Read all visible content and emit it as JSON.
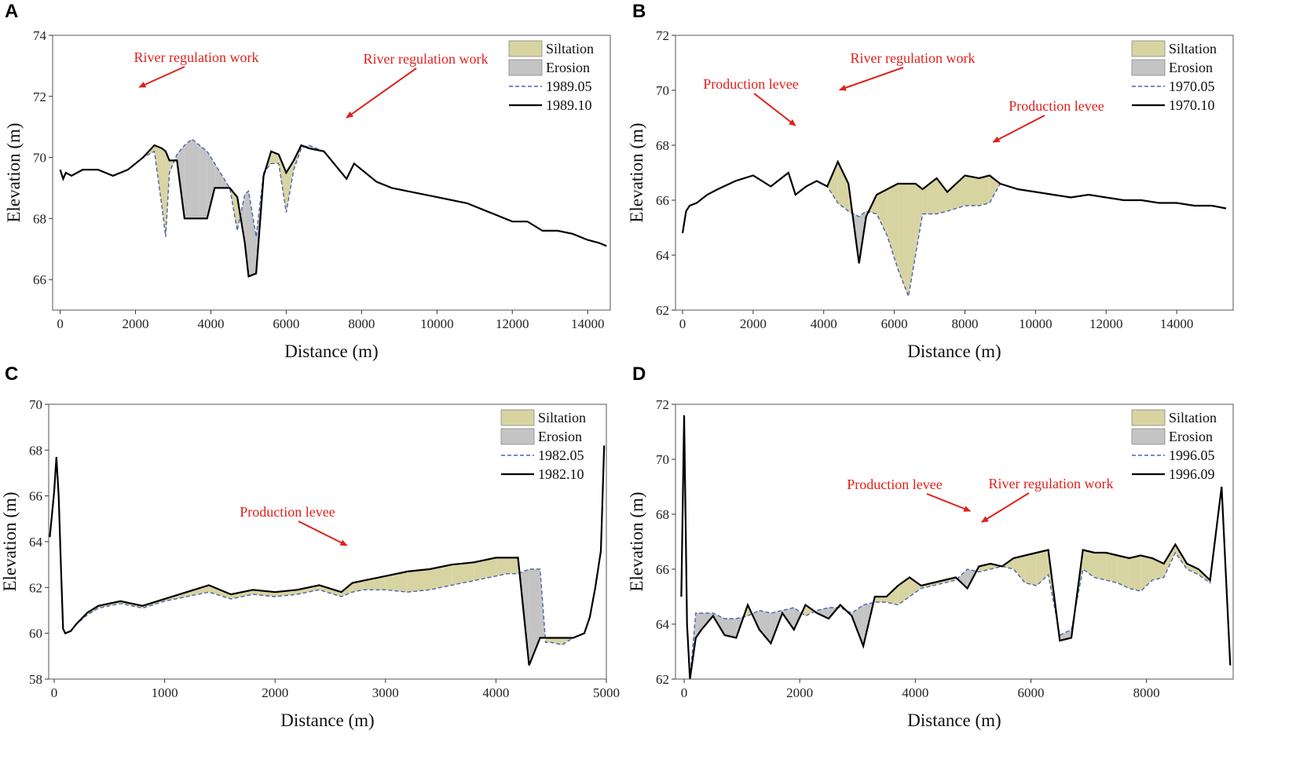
{
  "figure": {
    "panels": [
      "A",
      "B",
      "C",
      "D"
    ]
  },
  "colors": {
    "siltation": "#d8d4a2",
    "erosion": "#c4c4c4",
    "before_line": "#4a63b0",
    "after_line": "#000000",
    "annotation": "#e0201c"
  },
  "chart_data": [
    {
      "panel": "A",
      "type": "area",
      "xlabel": "Distance (m)",
      "ylabel": "Elevation (m)",
      "xlim": [
        -200,
        14600
      ],
      "ylim": [
        65,
        74
      ],
      "xticks": [
        0,
        2000,
        4000,
        6000,
        8000,
        10000,
        12000,
        14000
      ],
      "yticks": [
        66,
        68,
        70,
        72,
        74
      ],
      "legend": [
        "Siltation",
        "Erosion",
        "1989.05",
        "1989.10"
      ],
      "annotations": [
        {
          "text": "River regulation work",
          "x": 2100,
          "y": 72.2
        },
        {
          "text": "River regulation work",
          "x": 7600,
          "y": 71.2
        }
      ],
      "series": [
        {
          "name": "1989.05",
          "x": [
            0,
            80,
            150,
            300,
            600,
            1000,
            1400,
            1800,
            2000,
            2200,
            2500,
            2700,
            2800,
            2900,
            3100,
            3300,
            3500,
            3700,
            3900,
            4100,
            4300,
            4500,
            4700,
            4900,
            5000,
            5200,
            5400,
            5600,
            5800,
            6000,
            6200,
            6400,
            6600,
            7000,
            7400,
            7600,
            7800,
            8000,
            8400,
            8800,
            9200,
            9600,
            10000,
            10400,
            10800,
            11200,
            11600,
            12000,
            12400,
            12800,
            13200,
            13600,
            14000,
            14300,
            14500
          ],
          "y": [
            69.6,
            69.3,
            69.5,
            69.4,
            69.6,
            69.6,
            69.4,
            69.6,
            69.8,
            70.0,
            70.2,
            68.4,
            67.4,
            69.5,
            70.1,
            70.4,
            70.6,
            70.4,
            70.2,
            69.8,
            69.4,
            69.0,
            67.6,
            68.8,
            68.9,
            67.4,
            69.5,
            69.8,
            69.8,
            68.2,
            69.6,
            70.3,
            70.4,
            70.2,
            69.6,
            69.3,
            69.8,
            69.6,
            69.2,
            69.0,
            68.9,
            68.8,
            68.7,
            68.6,
            68.5,
            68.3,
            68.1,
            67.9,
            67.9,
            67.6,
            67.6,
            67.5,
            67.3,
            67.2,
            67.1
          ]
        },
        {
          "name": "1989.10",
          "x": [
            0,
            80,
            150,
            300,
            600,
            1000,
            1400,
            1800,
            2000,
            2200,
            2500,
            2700,
            2800,
            2900,
            3100,
            3300,
            3500,
            3700,
            3900,
            4100,
            4300,
            4500,
            4700,
            4900,
            5000,
            5200,
            5400,
            5600,
            5800,
            6000,
            6200,
            6400,
            6600,
            7000,
            7400,
            7600,
            7800,
            8000,
            8400,
            8800,
            9200,
            9600,
            10000,
            10400,
            10800,
            11200,
            11600,
            12000,
            12400,
            12800,
            13200,
            13600,
            14000,
            14300,
            14500
          ],
          "y": [
            69.6,
            69.3,
            69.5,
            69.4,
            69.6,
            69.6,
            69.4,
            69.6,
            69.8,
            70.0,
            70.4,
            70.3,
            70.2,
            69.9,
            69.9,
            68.0,
            68.0,
            68.0,
            68.0,
            69.0,
            69.0,
            69.0,
            68.7,
            67.2,
            66.1,
            66.2,
            69.4,
            70.2,
            70.1,
            69.5,
            69.9,
            70.4,
            70.3,
            70.2,
            69.6,
            69.3,
            69.8,
            69.6,
            69.2,
            69.0,
            68.9,
            68.8,
            68.7,
            68.6,
            68.5,
            68.3,
            68.1,
            67.9,
            67.9,
            67.6,
            67.6,
            67.5,
            67.3,
            67.2,
            67.1
          ]
        }
      ]
    },
    {
      "panel": "B",
      "type": "area",
      "xlabel": "Distance (m)",
      "ylabel": "Elevation (m)",
      "xlim": [
        -200,
        15600
      ],
      "ylim": [
        62,
        72
      ],
      "xticks": [
        0,
        2000,
        4000,
        6000,
        8000,
        10000,
        12000,
        14000
      ],
      "yticks": [
        62,
        64,
        66,
        68,
        70,
        72
      ],
      "legend": [
        "Siltation",
        "Erosion",
        "1970.05",
        "1970.10"
      ],
      "annotations": [
        {
          "text": "Production levee",
          "x": 3200,
          "y": 68.6
        },
        {
          "text": "River regulation work",
          "x": 4450,
          "y": 69.9
        },
        {
          "text": "Production levee",
          "x": 8800,
          "y": 68.0
        }
      ],
      "series": [
        {
          "name": "1970.05",
          "x": [
            0,
            100,
            200,
            400,
            700,
            1000,
            1500,
            2000,
            2500,
            3000,
            3200,
            3500,
            3800,
            4100,
            4400,
            4700,
            5000,
            5200,
            5500,
            5800,
            6100,
            6400,
            6600,
            6800,
            7200,
            7500,
            8000,
            8400,
            8700,
            9000,
            9500,
            10000,
            10500,
            11000,
            11500,
            12000,
            12500,
            13000,
            13500,
            14000,
            14500,
            15000,
            15400
          ],
          "y": [
            64.8,
            65.6,
            65.8,
            65.9,
            66.2,
            66.4,
            66.7,
            66.9,
            66.5,
            67.0,
            66.2,
            66.5,
            66.7,
            66.5,
            65.9,
            65.6,
            65.4,
            65.6,
            65.5,
            64.7,
            63.5,
            62.5,
            64.0,
            65.5,
            65.5,
            65.6,
            65.8,
            65.8,
            65.9,
            66.6,
            66.4,
            66.3,
            66.2,
            66.1,
            66.2,
            66.1,
            66.0,
            66.0,
            65.9,
            65.9,
            65.8,
            65.8,
            65.7
          ]
        },
        {
          "name": "1970.10",
          "x": [
            0,
            100,
            200,
            400,
            700,
            1000,
            1500,
            2000,
            2500,
            3000,
            3200,
            3500,
            3800,
            4100,
            4400,
            4700,
            5000,
            5200,
            5500,
            5800,
            6100,
            6400,
            6600,
            6800,
            7200,
            7500,
            8000,
            8400,
            8700,
            9000,
            9500,
            10000,
            10500,
            11000,
            11500,
            12000,
            12500,
            13000,
            13500,
            14000,
            14500,
            15000,
            15400
          ],
          "y": [
            64.8,
            65.6,
            65.8,
            65.9,
            66.2,
            66.4,
            66.7,
            66.9,
            66.5,
            67.0,
            66.2,
            66.5,
            66.7,
            66.5,
            67.4,
            66.6,
            63.7,
            65.4,
            66.2,
            66.4,
            66.6,
            66.6,
            66.6,
            66.4,
            66.8,
            66.3,
            66.9,
            66.8,
            66.9,
            66.6,
            66.4,
            66.3,
            66.2,
            66.1,
            66.2,
            66.1,
            66.0,
            66.0,
            65.9,
            65.9,
            65.8,
            65.8,
            65.7
          ]
        }
      ]
    },
    {
      "panel": "C",
      "type": "area",
      "xlabel": "Distance (m)",
      "ylabel": "Elevation (m)",
      "xlim": [
        -50,
        5000
      ],
      "ylim": [
        58,
        70
      ],
      "xticks": [
        0,
        1000,
        2000,
        3000,
        4000,
        5000
      ],
      "yticks": [
        58,
        60,
        62,
        64,
        66,
        68,
        70
      ],
      "legend": [
        "Siltation",
        "Erosion",
        "1982.05",
        "1982.10"
      ],
      "annotations": [
        {
          "text": "Production levee",
          "x": 2650,
          "y": 63.7
        }
      ],
      "series": [
        {
          "name": "1982.05",
          "x": [
            -40,
            0,
            20,
            40,
            60,
            80,
            100,
            150,
            200,
            300,
            400,
            600,
            800,
            1000,
            1200,
            1400,
            1600,
            1800,
            2000,
            2200,
            2400,
            2600,
            2700,
            2800,
            3000,
            3200,
            3400,
            3600,
            3800,
            4000,
            4100,
            4200,
            4300,
            4400,
            4450,
            4500,
            4600,
            4700,
            4800,
            4850,
            4900,
            4950,
            4980
          ],
          "y": [
            64.2,
            66.2,
            67.7,
            66.0,
            63.0,
            60.2,
            60.0,
            60.1,
            60.4,
            60.8,
            61.1,
            61.3,
            61.1,
            61.4,
            61.6,
            61.8,
            61.5,
            61.7,
            61.6,
            61.7,
            61.9,
            61.6,
            61.8,
            61.9,
            61.9,
            61.8,
            61.9,
            62.1,
            62.3,
            62.5,
            62.6,
            62.6,
            62.8,
            62.8,
            59.6,
            59.6,
            59.5,
            59.8,
            60.0,
            60.7,
            62.0,
            63.6,
            68.2
          ]
        },
        {
          "name": "1982.10",
          "x": [
            -40,
            0,
            20,
            40,
            60,
            80,
            100,
            150,
            200,
            300,
            400,
            600,
            800,
            1000,
            1200,
            1400,
            1600,
            1800,
            2000,
            2200,
            2400,
            2600,
            2700,
            2800,
            3000,
            3200,
            3400,
            3600,
            3800,
            4000,
            4100,
            4200,
            4300,
            4400,
            4450,
            4500,
            4600,
            4700,
            4800,
            4850,
            4900,
            4950,
            4980
          ],
          "y": [
            64.2,
            66.2,
            67.7,
            66.0,
            63.0,
            60.2,
            60.0,
            60.1,
            60.4,
            60.9,
            61.2,
            61.4,
            61.2,
            61.5,
            61.8,
            62.1,
            61.7,
            61.9,
            61.8,
            61.9,
            62.1,
            61.8,
            62.2,
            62.3,
            62.5,
            62.7,
            62.8,
            63.0,
            63.1,
            63.3,
            63.3,
            63.3,
            58.6,
            59.8,
            59.8,
            59.8,
            59.8,
            59.8,
            60.0,
            60.7,
            62.0,
            63.6,
            68.2
          ]
        }
      ]
    },
    {
      "panel": "D",
      "type": "area",
      "xlabel": "Distance (m)",
      "ylabel": "Elevation (m)",
      "xlim": [
        -150,
        9500
      ],
      "ylim": [
        62,
        72
      ],
      "xticks": [
        0,
        2000,
        4000,
        6000,
        8000
      ],
      "yticks": [
        62,
        64,
        66,
        68,
        70,
        72
      ],
      "legend": [
        "Siltation",
        "Erosion",
        "1996.05",
        "1996.09"
      ],
      "annotations": [
        {
          "text": "Production levee",
          "x": 4950,
          "y": 68.0
        },
        {
          "text": "River regulation work",
          "x": 5150,
          "y": 67.6
        }
      ],
      "series": [
        {
          "name": "1996.05",
          "x": [
            -50,
            0,
            50,
            100,
            200,
            300,
            500,
            700,
            900,
            1100,
            1300,
            1500,
            1700,
            1900,
            2100,
            2300,
            2500,
            2700,
            2900,
            3100,
            3300,
            3500,
            3700,
            3900,
            4100,
            4300,
            4500,
            4700,
            4900,
            5100,
            5300,
            5500,
            5700,
            5900,
            6100,
            6300,
            6500,
            6700,
            6900,
            7100,
            7300,
            7500,
            7700,
            7900,
            8100,
            8300,
            8500,
            8700,
            8900,
            9100,
            9300,
            9450
          ],
          "y": [
            65.0,
            71.6,
            64.0,
            62.0,
            64.4,
            64.4,
            64.4,
            64.2,
            64.2,
            64.3,
            64.5,
            64.4,
            64.5,
            64.6,
            64.3,
            64.5,
            64.6,
            64.6,
            64.4,
            64.7,
            64.8,
            64.8,
            64.7,
            65.0,
            65.3,
            65.4,
            65.5,
            65.6,
            66.0,
            65.9,
            66.0,
            66.1,
            66.0,
            65.5,
            65.4,
            65.8,
            63.6,
            63.8,
            66.0,
            65.7,
            65.6,
            65.5,
            65.3,
            65.2,
            65.6,
            65.7,
            66.6,
            66.0,
            65.8,
            65.5,
            69.0,
            62.5
          ]
        },
        {
          "name": "1996.09",
          "x": [
            -50,
            0,
            50,
            100,
            200,
            300,
            500,
            700,
            900,
            1100,
            1300,
            1500,
            1700,
            1900,
            2100,
            2300,
            2500,
            2700,
            2900,
            3100,
            3300,
            3500,
            3700,
            3900,
            4100,
            4300,
            4500,
            4700,
            4900,
            5100,
            5300,
            5500,
            5700,
            5900,
            6100,
            6300,
            6500,
            6700,
            6900,
            7100,
            7300,
            7500,
            7700,
            7900,
            8100,
            8300,
            8500,
            8700,
            8900,
            9100,
            9300,
            9450
          ],
          "y": [
            65.0,
            71.6,
            64.0,
            62.0,
            63.5,
            63.8,
            64.3,
            63.6,
            63.5,
            64.7,
            63.8,
            63.3,
            64.4,
            63.8,
            64.7,
            64.4,
            64.2,
            64.7,
            64.3,
            63.2,
            65.0,
            65.0,
            65.4,
            65.7,
            65.4,
            65.5,
            65.6,
            65.7,
            65.3,
            66.1,
            66.2,
            66.1,
            66.4,
            66.5,
            66.6,
            66.7,
            63.4,
            63.5,
            66.7,
            66.6,
            66.6,
            66.5,
            66.4,
            66.5,
            66.4,
            66.2,
            66.9,
            66.2,
            66.0,
            65.6,
            69.0,
            62.5
          ]
        }
      ]
    }
  ]
}
